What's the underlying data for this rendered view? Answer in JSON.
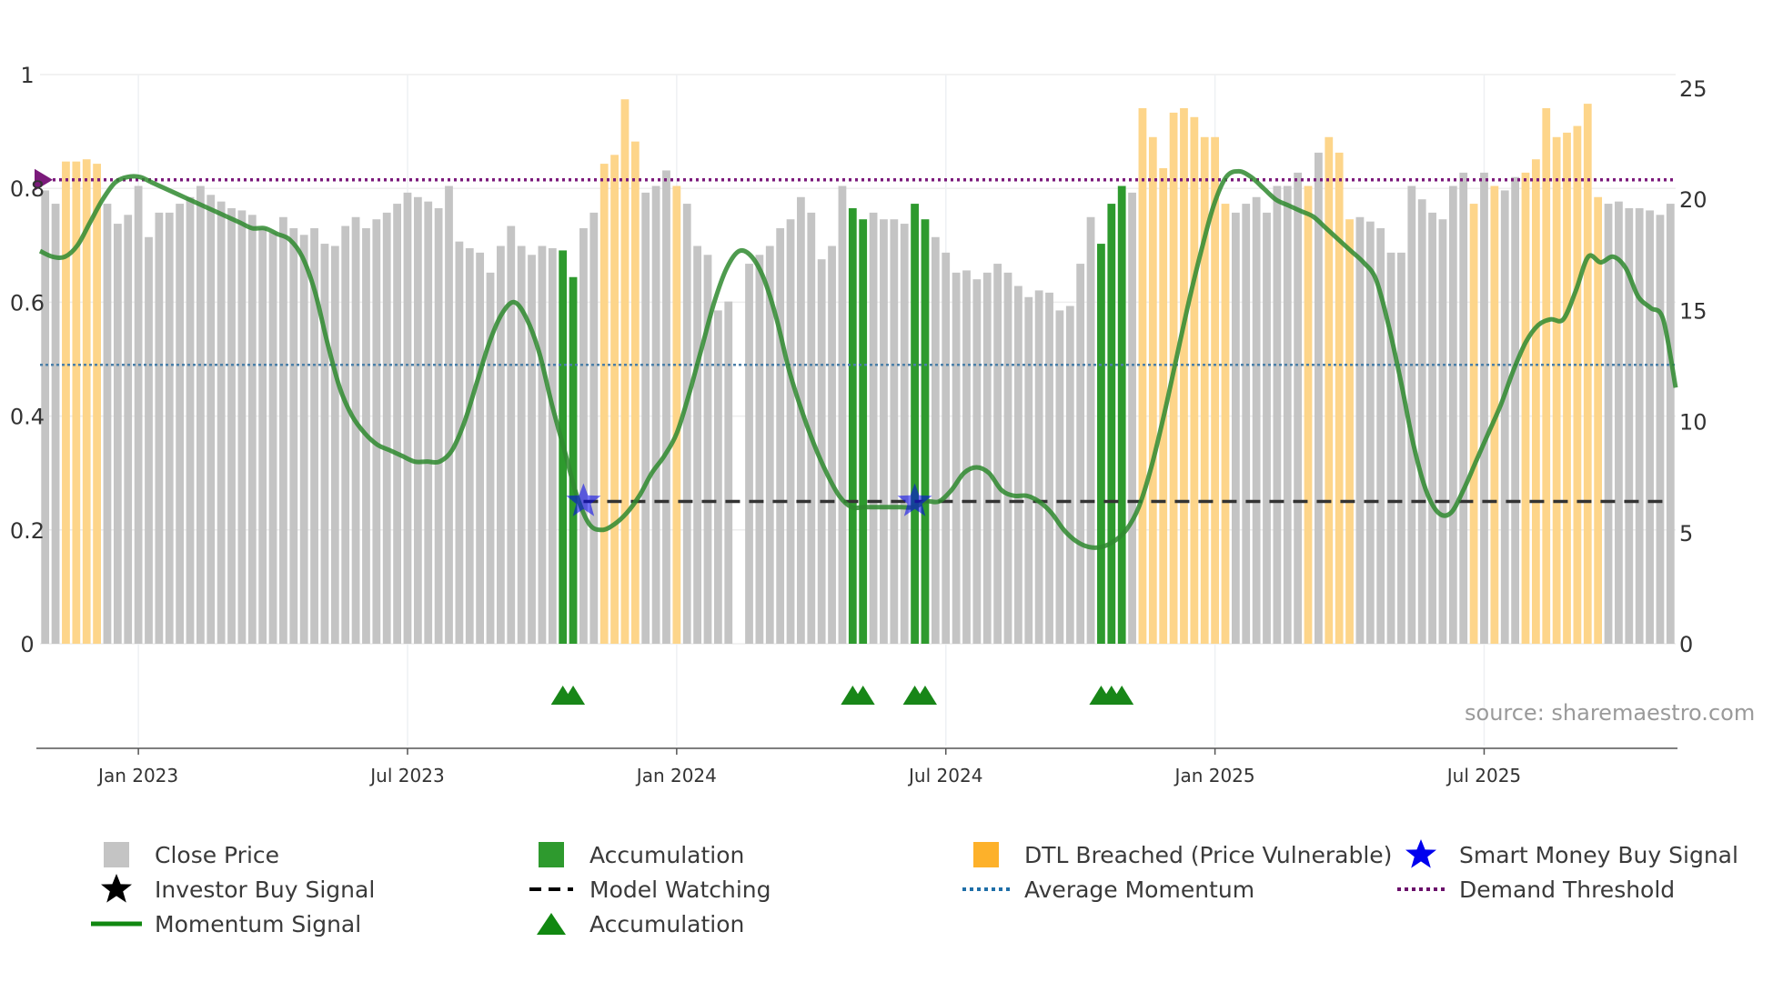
{
  "chart_data": {
    "type": "bar",
    "title": "",
    "source": "source: sharemaestro.com",
    "left_axis": {
      "min": 0,
      "max": 1,
      "ticks": [
        "0",
        "0.2",
        "0.4",
        "0.6",
        "0.8",
        "1"
      ]
    },
    "right_axis": {
      "min": 0,
      "max": 25,
      "ticks": [
        "0",
        "5",
        "10",
        "15",
        "20",
        "25"
      ]
    },
    "x_ticks": [
      {
        "label": "Jan 2023",
        "week": 9
      },
      {
        "label": "Jul 2023",
        "week": 35
      },
      {
        "label": "Jan 2024",
        "week": 61
      },
      {
        "label": "Jul 2024",
        "week": 87
      },
      {
        "label": "Jan 2025",
        "week": 113
      },
      {
        "label": "Jul 2025",
        "week": 139
      }
    ],
    "close_prices": [
      20.4,
      19.8,
      21.7,
      21.7,
      21.8,
      21.6,
      19.8,
      18.9,
      19.3,
      20.6,
      18.3,
      19.4,
      19.4,
      19.8,
      20.1,
      20.6,
      20.2,
      19.9,
      19.6,
      19.5,
      19.3,
      18.7,
      18.5,
      19.2,
      18.7,
      18.4,
      18.7,
      18.0,
      17.9,
      18.8,
      19.2,
      18.7,
      19.1,
      19.4,
      19.8,
      20.3,
      20.1,
      19.9,
      19.6,
      20.6,
      18.1,
      17.8,
      17.6,
      16.7,
      17.9,
      18.8,
      17.9,
      17.5,
      17.9,
      17.8,
      17.7,
      16.5,
      18.7,
      19.4,
      21.6,
      22.0,
      24.5,
      22.6,
      20.3,
      20.6,
      21.3,
      20.6,
      19.8,
      17.9,
      17.5,
      15.0,
      15.4,
      0,
      17.1,
      17.5,
      17.9,
      18.7,
      19.1,
      20.1,
      19.4,
      17.3,
      17.9,
      20.6,
      19.6,
      19.1,
      19.4,
      19.1,
      19.1,
      18.9,
      19.8,
      19.1,
      18.3,
      17.6,
      16.7,
      16.8,
      16.4,
      16.7,
      17.1,
      16.7,
      16.1,
      15.6,
      15.9,
      15.8,
      15.0,
      15.2,
      17.1,
      19.2,
      18.0,
      19.8,
      20.6,
      20.3,
      24.1,
      22.8,
      21.4,
      23.9,
      24.1,
      23.7,
      22.8,
      22.8,
      19.8,
      19.4,
      19.8,
      20.1,
      19.4,
      20.6,
      20.6,
      21.2,
      20.6,
      22.1,
      22.8,
      22.1,
      19.1,
      19.2,
      19.0,
      18.7,
      17.6,
      17.6,
      20.6,
      20.0,
      19.4,
      19.1,
      20.6,
      21.2,
      19.8,
      21.2,
      20.6,
      20.4,
      21.0,
      21.2,
      21.8,
      24.1,
      22.8,
      23.0,
      23.3,
      24.3,
      20.1,
      19.8,
      19.9,
      19.6,
      19.6,
      19.5,
      19.3,
      19.8
    ],
    "accumulation_weeks": [
      50,
      51,
      78,
      79,
      84,
      85,
      102,
      103,
      104
    ],
    "dtl_breached_weeks": [
      2,
      3,
      4,
      5,
      54,
      55,
      56,
      57,
      61,
      106,
      107,
      108,
      109,
      110,
      111,
      112,
      113,
      114,
      122,
      124,
      125,
      126,
      138,
      140,
      143,
      144,
      145,
      146,
      147,
      148,
      149,
      150
    ],
    "accumulation_marker_weeks": [
      50,
      51,
      78,
      79,
      84,
      85,
      102,
      103,
      104
    ],
    "smart_money_signal_weeks": [
      52,
      84
    ],
    "model_watching": {
      "value": 0.25,
      "start_week": 52,
      "end_week": 156
    },
    "average_momentum": 0.49,
    "demand_threshold": 0.815,
    "momentum": [
      0.69,
      0.68,
      0.68,
      0.7,
      0.74,
      0.78,
      0.81,
      0.82,
      0.82,
      0.81,
      0.8,
      0.79,
      0.78,
      0.77,
      0.76,
      0.75,
      0.74,
      0.73,
      0.73,
      0.72,
      0.71,
      0.68,
      0.62,
      0.53,
      0.45,
      0.4,
      0.37,
      0.35,
      0.34,
      0.33,
      0.32,
      0.32,
      0.32,
      0.34,
      0.39,
      0.46,
      0.53,
      0.58,
      0.6,
      0.57,
      0.51,
      0.42,
      0.34,
      0.26,
      0.21,
      0.2,
      0.21,
      0.23,
      0.26,
      0.3,
      0.33,
      0.37,
      0.44,
      0.52,
      0.6,
      0.66,
      0.69,
      0.68,
      0.64,
      0.57,
      0.48,
      0.41,
      0.35,
      0.3,
      0.26,
      0.24,
      0.24,
      0.24,
      0.24,
      0.24,
      0.24,
      0.25,
      0.25,
      0.27,
      0.3,
      0.31,
      0.3,
      0.27,
      0.26,
      0.26,
      0.25,
      0.23,
      0.2,
      0.18,
      0.17,
      0.17,
      0.18,
      0.2,
      0.24,
      0.31,
      0.4,
      0.5,
      0.6,
      0.69,
      0.77,
      0.82,
      0.83,
      0.82,
      0.8,
      0.78,
      0.77,
      0.76,
      0.75,
      0.73,
      0.71,
      0.69,
      0.67,
      0.64,
      0.56,
      0.46,
      0.35,
      0.27,
      0.23,
      0.23,
      0.27,
      0.32,
      0.37,
      0.42,
      0.48,
      0.53,
      0.56,
      0.57,
      0.57,
      0.62,
      0.68,
      0.67,
      0.68,
      0.66,
      0.61,
      0.59,
      0.57,
      0.45
    ],
    "legend": [
      {
        "key": "close",
        "label": "Close Price"
      },
      {
        "key": "accum_bar",
        "label": "Accumulation"
      },
      {
        "key": "dtl",
        "label": "DTL Breached (Price Vulnerable)"
      },
      {
        "key": "smart",
        "label": "Smart Money Buy Signal"
      },
      {
        "key": "investor",
        "label": "Investor Buy Signal"
      },
      {
        "key": "watch",
        "label": "Model Watching"
      },
      {
        "key": "avg",
        "label": "Average Momentum"
      },
      {
        "key": "demand",
        "label": "Demand Threshold"
      },
      {
        "key": "momentum",
        "label": "Momentum Signal"
      },
      {
        "key": "accum_tri",
        "label": "Accumulation"
      }
    ],
    "colors": {
      "close": "#c4c4c4",
      "accumulation": "#2e9a2e",
      "dtl": "#fdd58a",
      "momentum": "#2f8a2f",
      "average": "#4a7fa8",
      "demand": "#7b1a7b",
      "watching": "#333333",
      "smart": "#0000ee",
      "triangle": "#188618"
    }
  }
}
